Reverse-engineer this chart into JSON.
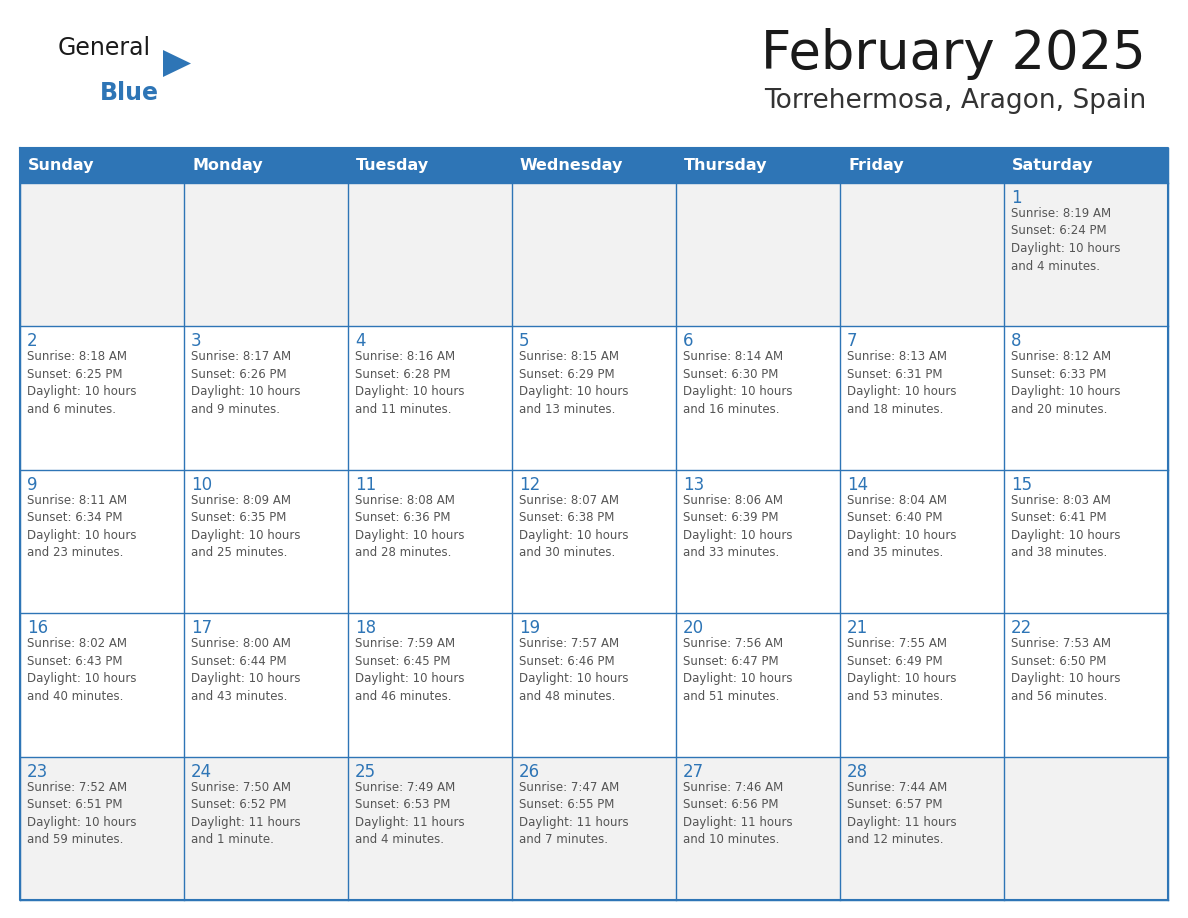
{
  "title": "February 2025",
  "subtitle": "Torrehermosa, Aragon, Spain",
  "header_color": "#2E75B6",
  "header_text_color": "#FFFFFF",
  "cell_bg_white": "#FFFFFF",
  "cell_bg_gray": "#F2F2F2",
  "border_color": "#2E75B6",
  "day_number_color": "#2E75B6",
  "text_color": "#555555",
  "title_color": "#1a1a1a",
  "subtitle_color": "#333333",
  "days_of_week": [
    "Sunday",
    "Monday",
    "Tuesday",
    "Wednesday",
    "Thursday",
    "Friday",
    "Saturday"
  ],
  "week_bg": [
    "gray",
    "white",
    "white",
    "white",
    "gray"
  ],
  "weeks": [
    [
      {
        "day": "",
        "info": ""
      },
      {
        "day": "",
        "info": ""
      },
      {
        "day": "",
        "info": ""
      },
      {
        "day": "",
        "info": ""
      },
      {
        "day": "",
        "info": ""
      },
      {
        "day": "",
        "info": ""
      },
      {
        "day": "1",
        "info": "Sunrise: 8:19 AM\nSunset: 6:24 PM\nDaylight: 10 hours\nand 4 minutes."
      }
    ],
    [
      {
        "day": "2",
        "info": "Sunrise: 8:18 AM\nSunset: 6:25 PM\nDaylight: 10 hours\nand 6 minutes."
      },
      {
        "day": "3",
        "info": "Sunrise: 8:17 AM\nSunset: 6:26 PM\nDaylight: 10 hours\nand 9 minutes."
      },
      {
        "day": "4",
        "info": "Sunrise: 8:16 AM\nSunset: 6:28 PM\nDaylight: 10 hours\nand 11 minutes."
      },
      {
        "day": "5",
        "info": "Sunrise: 8:15 AM\nSunset: 6:29 PM\nDaylight: 10 hours\nand 13 minutes."
      },
      {
        "day": "6",
        "info": "Sunrise: 8:14 AM\nSunset: 6:30 PM\nDaylight: 10 hours\nand 16 minutes."
      },
      {
        "day": "7",
        "info": "Sunrise: 8:13 AM\nSunset: 6:31 PM\nDaylight: 10 hours\nand 18 minutes."
      },
      {
        "day": "8",
        "info": "Sunrise: 8:12 AM\nSunset: 6:33 PM\nDaylight: 10 hours\nand 20 minutes."
      }
    ],
    [
      {
        "day": "9",
        "info": "Sunrise: 8:11 AM\nSunset: 6:34 PM\nDaylight: 10 hours\nand 23 minutes."
      },
      {
        "day": "10",
        "info": "Sunrise: 8:09 AM\nSunset: 6:35 PM\nDaylight: 10 hours\nand 25 minutes."
      },
      {
        "day": "11",
        "info": "Sunrise: 8:08 AM\nSunset: 6:36 PM\nDaylight: 10 hours\nand 28 minutes."
      },
      {
        "day": "12",
        "info": "Sunrise: 8:07 AM\nSunset: 6:38 PM\nDaylight: 10 hours\nand 30 minutes."
      },
      {
        "day": "13",
        "info": "Sunrise: 8:06 AM\nSunset: 6:39 PM\nDaylight: 10 hours\nand 33 minutes."
      },
      {
        "day": "14",
        "info": "Sunrise: 8:04 AM\nSunset: 6:40 PM\nDaylight: 10 hours\nand 35 minutes."
      },
      {
        "day": "15",
        "info": "Sunrise: 8:03 AM\nSunset: 6:41 PM\nDaylight: 10 hours\nand 38 minutes."
      }
    ],
    [
      {
        "day": "16",
        "info": "Sunrise: 8:02 AM\nSunset: 6:43 PM\nDaylight: 10 hours\nand 40 minutes."
      },
      {
        "day": "17",
        "info": "Sunrise: 8:00 AM\nSunset: 6:44 PM\nDaylight: 10 hours\nand 43 minutes."
      },
      {
        "day": "18",
        "info": "Sunrise: 7:59 AM\nSunset: 6:45 PM\nDaylight: 10 hours\nand 46 minutes."
      },
      {
        "day": "19",
        "info": "Sunrise: 7:57 AM\nSunset: 6:46 PM\nDaylight: 10 hours\nand 48 minutes."
      },
      {
        "day": "20",
        "info": "Sunrise: 7:56 AM\nSunset: 6:47 PM\nDaylight: 10 hours\nand 51 minutes."
      },
      {
        "day": "21",
        "info": "Sunrise: 7:55 AM\nSunset: 6:49 PM\nDaylight: 10 hours\nand 53 minutes."
      },
      {
        "day": "22",
        "info": "Sunrise: 7:53 AM\nSunset: 6:50 PM\nDaylight: 10 hours\nand 56 minutes."
      }
    ],
    [
      {
        "day": "23",
        "info": "Sunrise: 7:52 AM\nSunset: 6:51 PM\nDaylight: 10 hours\nand 59 minutes."
      },
      {
        "day": "24",
        "info": "Sunrise: 7:50 AM\nSunset: 6:52 PM\nDaylight: 11 hours\nand 1 minute."
      },
      {
        "day": "25",
        "info": "Sunrise: 7:49 AM\nSunset: 6:53 PM\nDaylight: 11 hours\nand 4 minutes."
      },
      {
        "day": "26",
        "info": "Sunrise: 7:47 AM\nSunset: 6:55 PM\nDaylight: 11 hours\nand 7 minutes."
      },
      {
        "day": "27",
        "info": "Sunrise: 7:46 AM\nSunset: 6:56 PM\nDaylight: 11 hours\nand 10 minutes."
      },
      {
        "day": "28",
        "info": "Sunrise: 7:44 AM\nSunset: 6:57 PM\nDaylight: 11 hours\nand 12 minutes."
      },
      {
        "day": "",
        "info": ""
      }
    ]
  ],
  "logo_text_general": "General",
  "logo_text_blue": "Blue",
  "logo_color_general": "#1a1a1a",
  "logo_color_blue": "#2E75B6",
  "logo_triangle_color": "#2E75B6"
}
